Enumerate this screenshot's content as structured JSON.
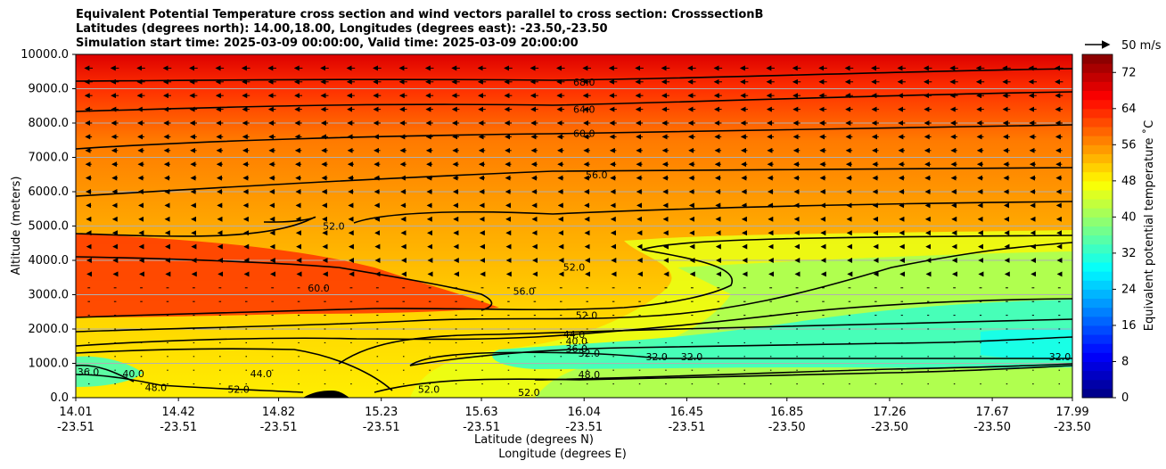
{
  "chart_data": {
    "type": "heatmap",
    "title_lines": [
      "Equivalent Potential Temperature cross section and wind vectors parallel to cross section: CrosssectionB",
      "Latitudes (degrees north): 14.00,18.00, Longitudes (degrees east): -23.50,-23.50",
      "Simulation start time: 2025-03-09 00:00:00, Valid time: 2025-03-09 20:00:00"
    ],
    "ylabel": "Altitude (meters)",
    "xlabel_lat": "Latitude (degrees N)",
    "xlabel_lon": "Longitude (degrees E)",
    "ylim": [
      0,
      10000
    ],
    "yticks": [
      "0.0",
      "1000.0",
      "2000.0",
      "3000.0",
      "4000.0",
      "5000.0",
      "6000.0",
      "7000.0",
      "8000.0",
      "9000.0",
      "10000.0"
    ],
    "xticks_lat": [
      "14.01",
      "14.42",
      "14.82",
      "15.23",
      "15.63",
      "16.04",
      "16.45",
      "16.85",
      "17.26",
      "17.67",
      "17.99"
    ],
    "xticks_lon": [
      "-23.51",
      "-23.51",
      "-23.51",
      "-23.51",
      "-23.51",
      "-23.51",
      "-23.51",
      "-23.50",
      "-23.50",
      "-23.50",
      "-23.50"
    ],
    "grid": true,
    "colorbar": {
      "label": "Equivalent potential temperature $^\\circ$C",
      "label_display": "Equivalent potential temperature ˚C",
      "range": [
        0,
        76
      ],
      "ticks": [
        "0",
        "8",
        "16",
        "24",
        "32",
        "40",
        "48",
        "56",
        "64",
        "72"
      ],
      "colormap": "jet"
    },
    "quiver_key": "50 m/s",
    "contour_labels": [
      {
        "text": "68.0",
        "x": 16.04,
        "y": 9200
      },
      {
        "text": "64.0",
        "x": 16.04,
        "y": 8400
      },
      {
        "text": "60.0",
        "x": 16.04,
        "y": 7700
      },
      {
        "text": "56.0",
        "x": 16.09,
        "y": 6500
      },
      {
        "text": "52.0",
        "x": 15.04,
        "y": 5000
      },
      {
        "text": "52.0",
        "x": 16.0,
        "y": 3800
      },
      {
        "text": "60.0",
        "x": 14.98,
        "y": 3200
      },
      {
        "text": "56.0",
        "x": 15.8,
        "y": 3100
      },
      {
        "text": "52.0",
        "x": 16.05,
        "y": 2400
      },
      {
        "text": "44.0",
        "x": 16.0,
        "y": 1850
      },
      {
        "text": "40.0",
        "x": 16.01,
        "y": 1650
      },
      {
        "text": "36.0",
        "x": 16.01,
        "y": 1430
      },
      {
        "text": "32.0",
        "x": 16.06,
        "y": 1300
      },
      {
        "text": "32.0",
        "x": 16.33,
        "y": 1200
      },
      {
        "text": "32.0",
        "x": 16.47,
        "y": 1200
      },
      {
        "text": "48.0",
        "x": 16.06,
        "y": 680
      },
      {
        "text": "36.0",
        "x": 14.06,
        "y": 750
      },
      {
        "text": "40.0",
        "x": 14.24,
        "y": 700
      },
      {
        "text": "48.0",
        "x": 14.33,
        "y": 300
      },
      {
        "text": "44.0",
        "x": 14.75,
        "y": 700
      },
      {
        "text": "52.0",
        "x": 14.66,
        "y": 250
      },
      {
        "text": "52.0",
        "x": 15.42,
        "y": 250
      },
      {
        "text": "52.0",
        "x": 15.82,
        "y": 150
      },
      {
        "text": "32.0",
        "x": 17.94,
        "y": 1200
      }
    ]
  }
}
